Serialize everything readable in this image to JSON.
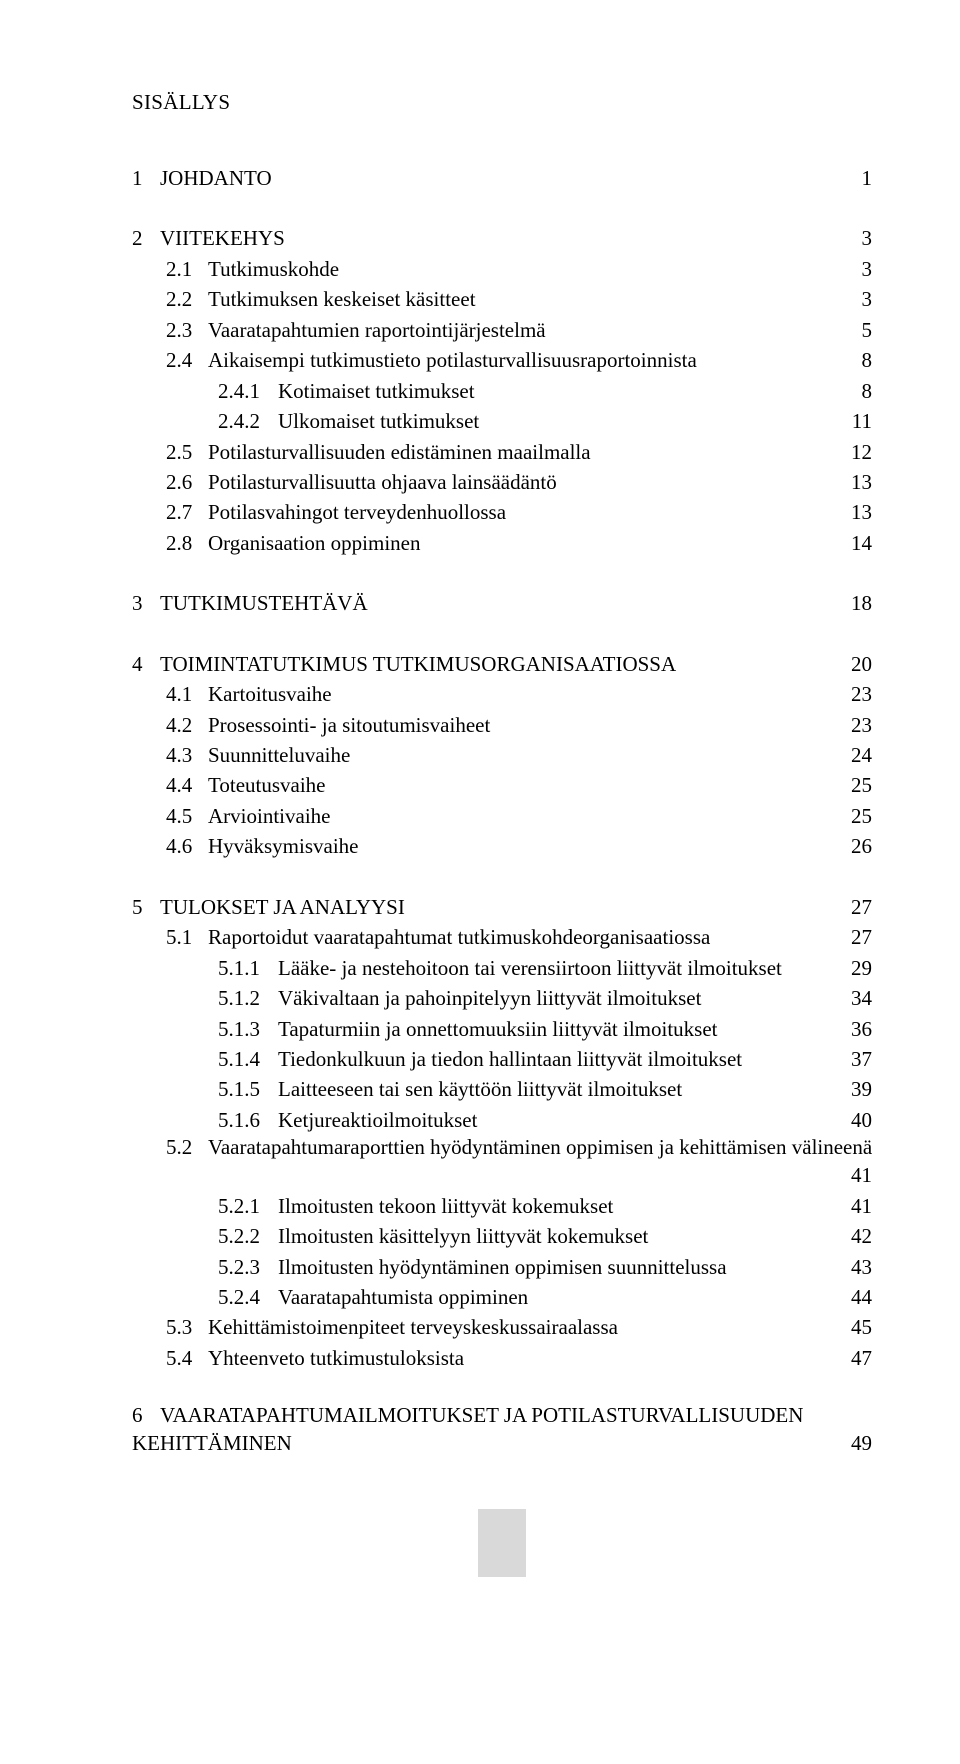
{
  "title": "SISÄLLYS",
  "fontsize": 21,
  "text_color": "#000000",
  "background_color": "#ffffff",
  "footer_bar_color": "#d9d9d9",
  "toc": [
    {
      "level": 0,
      "num": "1",
      "label": "JOHDANTO",
      "page": "1",
      "gap": "big",
      "numw": 28
    },
    {
      "level": 0,
      "num": "2",
      "label": "VIITEKEHYS",
      "page": "3",
      "gap": "big",
      "numw": 28
    },
    {
      "level": 1,
      "num": "2.1",
      "label": "Tutkimuskohde",
      "page": "3",
      "gap": "small",
      "numw": 42
    },
    {
      "level": 1,
      "num": "2.2",
      "label": "Tutkimuksen keskeiset käsitteet",
      "page": "3",
      "gap": "small",
      "numw": 42
    },
    {
      "level": 1,
      "num": "2.3",
      "label": "Vaaratapahtumien raportointijärjestelmä",
      "page": "5",
      "gap": "small",
      "numw": 42
    },
    {
      "level": 1,
      "num": "2.4",
      "label": "Aikaisempi tutkimustieto potilasturvallisuusraportoinnista",
      "page": "8",
      "gap": "small",
      "numw": 42
    },
    {
      "level": 2,
      "num": "2.4.1",
      "label": "Kotimaiset tutkimukset",
      "page": "8",
      "gap": "small",
      "numw": 60
    },
    {
      "level": 2,
      "num": "2.4.2",
      "label": "Ulkomaiset tutkimukset",
      "page": "11",
      "gap": "small",
      "numw": 60
    },
    {
      "level": 1,
      "num": "2.5",
      "label": "Potilasturvallisuuden edistäminen maailmalla",
      "page": "12",
      "gap": "small",
      "numw": 42
    },
    {
      "level": 1,
      "num": "2.6",
      "label": "Potilasturvallisuutta ohjaava lainsäädäntö",
      "page": "13",
      "gap": "small",
      "numw": 42
    },
    {
      "level": 1,
      "num": "2.7",
      "label": "Potilasvahingot terveydenhuollossa",
      "page": "13",
      "gap": "small",
      "numw": 42
    },
    {
      "level": 1,
      "num": "2.8",
      "label": "Organisaation oppiminen",
      "page": "14",
      "gap": "small",
      "numw": 42
    },
    {
      "level": 0,
      "num": "3",
      "label": "TUTKIMUSTEHTÄVÄ",
      "page": "18",
      "gap": "big",
      "numw": 28
    },
    {
      "level": 0,
      "num": "4",
      "label": "TOIMINTATUTKIMUS TUTKIMUSORGANISAATIOSSA",
      "page": "20",
      "gap": "big",
      "numw": 28
    },
    {
      "level": 1,
      "num": "4.1",
      "label": "Kartoitusvaihe",
      "page": "23",
      "gap": "small",
      "numw": 42
    },
    {
      "level": 1,
      "num": "4.2",
      "label": "Prosessointi- ja sitoutumisvaiheet",
      "page": "23",
      "gap": "small",
      "numw": 42
    },
    {
      "level": 1,
      "num": "4.3",
      "label": "Suunnitteluvaihe",
      "page": "24",
      "gap": "small",
      "numw": 42
    },
    {
      "level": 1,
      "num": "4.4",
      "label": "Toteutusvaihe",
      "page": "25",
      "gap": "small",
      "numw": 42
    },
    {
      "level": 1,
      "num": "4.5",
      "label": "Arviointivaihe",
      "page": "25",
      "gap": "small",
      "numw": 42
    },
    {
      "level": 1,
      "num": "4.6",
      "label": "Hyväksymisvaihe",
      "page": "26",
      "gap": "small",
      "numw": 42
    },
    {
      "level": 0,
      "num": "5",
      "label": "TULOKSET JA ANALYYSI",
      "page": "27",
      "gap": "big",
      "numw": 28
    },
    {
      "level": 1,
      "num": "5.1",
      "label": "Raportoidut vaaratapahtumat tutkimuskohdeorganisaatiossa",
      "page": "27",
      "gap": "small",
      "numw": 42
    },
    {
      "level": 2,
      "num": "5.1.1",
      "label": "Lääke- ja nestehoitoon tai verensiirtoon liittyvät ilmoitukset",
      "page": "29",
      "gap": "small",
      "numw": 60
    },
    {
      "level": 2,
      "num": "5.1.2",
      "label": "Väkivaltaan ja pahoinpitelyyn liittyvät ilmoitukset",
      "page": "34",
      "gap": "small",
      "numw": 60
    },
    {
      "level": 2,
      "num": "5.1.3",
      "label": "Tapaturmiin ja onnettomuuksiin liittyvät ilmoitukset",
      "page": "36",
      "gap": "small",
      "numw": 60
    },
    {
      "level": 2,
      "num": "5.1.4",
      "label": "Tiedonkulkuun ja tiedon hallintaan liittyvät ilmoitukset",
      "page": "37",
      "gap": "small",
      "numw": 60
    },
    {
      "level": 2,
      "num": "5.1.5",
      "label": "Laitteeseen tai sen käyttöön liittyvät ilmoitukset",
      "page": "39",
      "gap": "small",
      "numw": 60
    },
    {
      "level": 2,
      "num": "5.1.6",
      "label": "Ketjureaktioilmoitukset",
      "page": "40",
      "gap": "small",
      "numw": 60
    },
    {
      "level": 1,
      "num": "5.2",
      "label": "Vaaratapahtumaraporttien hyödyntäminen oppimisen ja kehittämisen välineenä",
      "page": "41",
      "gap": "small",
      "numw": 42,
      "multiline": true
    },
    {
      "level": 2,
      "num": "5.2.1",
      "label": "Ilmoitusten tekoon liittyvät kokemukset",
      "page": "41",
      "gap": "small",
      "numw": 60
    },
    {
      "level": 2,
      "num": "5.2.2",
      "label": "Ilmoitusten käsittelyyn liittyvät kokemukset",
      "page": "42",
      "gap": "small",
      "numw": 60
    },
    {
      "level": 2,
      "num": "5.2.3",
      "label": "Ilmoitusten hyödyntäminen oppimisen suunnittelussa",
      "page": "43",
      "gap": "small",
      "numw": 60
    },
    {
      "level": 2,
      "num": "5.2.4",
      "label": "Vaaratapahtumista oppiminen",
      "page": "44",
      "gap": "small",
      "numw": 60
    },
    {
      "level": 1,
      "num": "5.3",
      "label": "Kehittämistoimenpiteet terveyskeskussairaalassa",
      "page": "45",
      "gap": "small",
      "numw": 42
    },
    {
      "level": 1,
      "num": "5.4",
      "label": "Yhteenveto tutkimustuloksista",
      "page": "47",
      "gap": "small",
      "numw": 42
    },
    {
      "level": 0,
      "num": "6",
      "label": "VAARATAPAHTUMAILMOITUKSET JA POTILASTURVALLISUUDEN",
      "label2": "KEHITTÄMINEN",
      "page": "49",
      "gap": "big",
      "numw": 28,
      "twoline": true
    }
  ]
}
